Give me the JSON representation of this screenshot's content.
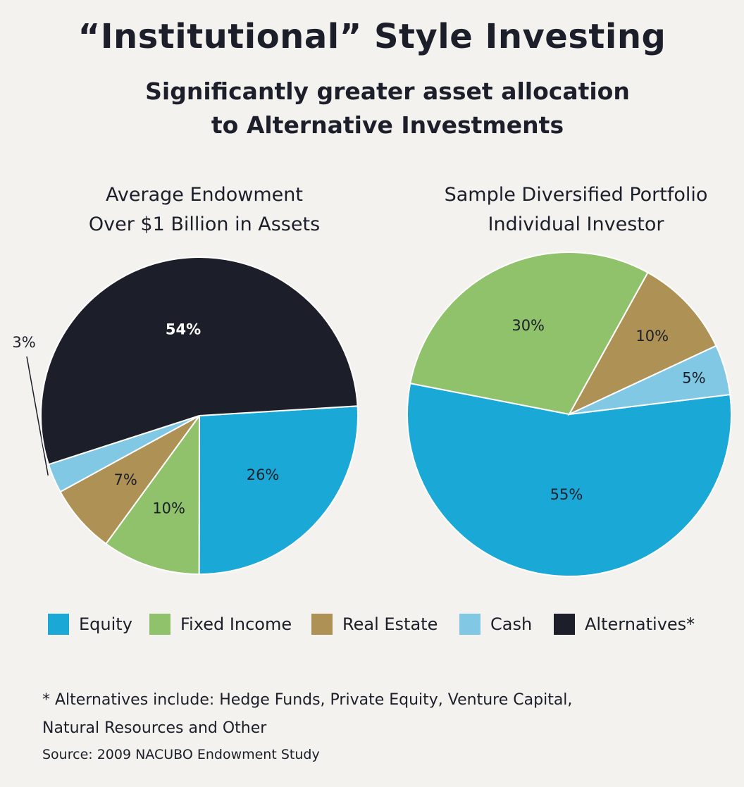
{
  "header": {
    "title": "“Institutional” Style Investing",
    "subtitle_line1": "Significantly greater asset allocation",
    "subtitle_line2": "to Alternative Investments"
  },
  "chart_data": [
    {
      "type": "pie",
      "title_line1": "Average Endowment",
      "title_line2": "Over $1 Billion in Assets",
      "slices": [
        {
          "name": "Equity",
          "value": 26,
          "label": "26%",
          "color": "#1aa9d6"
        },
        {
          "name": "Fixed Income",
          "value": 10,
          "label": "10%",
          "color": "#8fc26a"
        },
        {
          "name": "Real Estate",
          "value": 7,
          "label": "7%",
          "color": "#ad9155"
        },
        {
          "name": "Cash",
          "value": 3,
          "label": "3%",
          "color": "#80c8e3"
        },
        {
          "name": "Alternatives*",
          "value": 54,
          "label": "54%",
          "color": "#1c1f2a"
        }
      ]
    },
    {
      "type": "pie",
      "title_line1": "Sample Diversified Portfolio",
      "title_line2": "Individual Investor",
      "slices": [
        {
          "name": "Equity",
          "value": 55,
          "label": "55%",
          "color": "#1aa9d6"
        },
        {
          "name": "Fixed Income",
          "value": 30,
          "label": "30%",
          "color": "#8fc26a"
        },
        {
          "name": "Real Estate",
          "value": 10,
          "label": "10%",
          "color": "#ad9155"
        },
        {
          "name": "Cash",
          "value": 5,
          "label": "5%",
          "color": "#80c8e3"
        }
      ]
    }
  ],
  "legend": [
    {
      "label": "Equity",
      "color": "#1aa9d6"
    },
    {
      "label": "Fixed Income",
      "color": "#8fc26a"
    },
    {
      "label": "Real Estate",
      "color": "#ad9155"
    },
    {
      "label": "Cash",
      "color": "#80c8e3"
    },
    {
      "label": "Alternatives*",
      "color": "#1c1f2a"
    }
  ],
  "footnote": {
    "line1": "* Alternatives include: Hedge Funds, Private Equity, Venture Capital,",
    "line2": "Natural Resources and Other"
  },
  "source": "Source: 2009 NACUBO Endowment Study"
}
